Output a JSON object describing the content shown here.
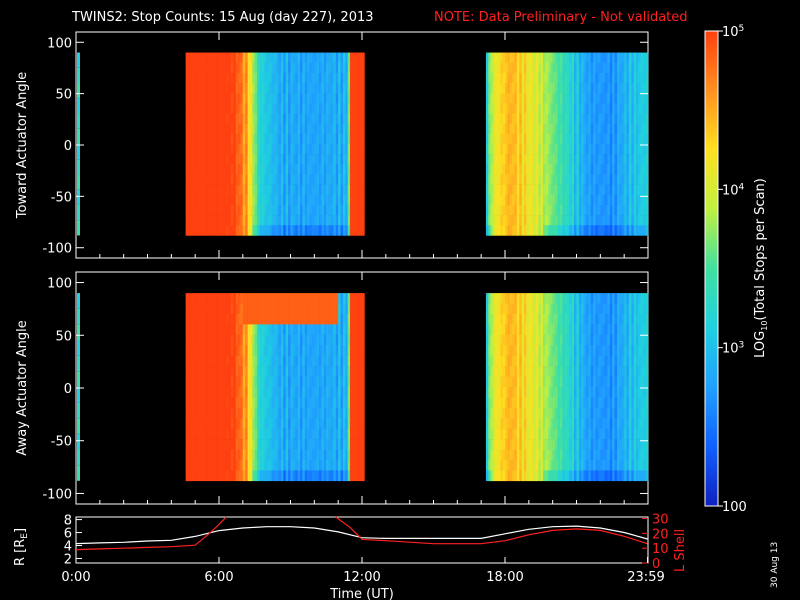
{
  "header": {
    "title": "TWINS2: Stop Counts: 15 Aug (day 227), 2013",
    "note": "NOTE: Data Preliminary - Not validated"
  },
  "stamp": "30 Aug 13",
  "colors": {
    "background": "#000000",
    "axis": "#ffffff",
    "note": "#ff2020",
    "lshell": "#ff2020",
    "radius": "#ffffff"
  },
  "chart_data": [
    {
      "type": "heatmap",
      "ylabel": "Toward Actuator Angle",
      "x_range_hours": [
        0,
        24
      ],
      "ylim": [
        -110,
        110
      ],
      "yticks": [
        "100",
        "50",
        "0",
        "-50",
        "-100"
      ],
      "ytick_values": [
        100,
        50,
        0,
        -50,
        -100
      ],
      "angle_range": [
        -88,
        90
      ],
      "data_intervals_hours": [
        [
          4.6,
          12.1
        ],
        [
          17.2,
          24
        ]
      ],
      "colorscale": [
        "#1020c0",
        "#1060ff",
        "#20a0ff",
        "#20d0e0",
        "#40e0a0",
        "#c0f040",
        "#ffe020",
        "#ff9020",
        "#ff4010"
      ],
      "level_profile": [
        [
          4.6,
          8.8
        ],
        [
          5.4,
          8.4
        ],
        [
          6.6,
          8.2
        ],
        [
          7.2,
          6.6
        ],
        [
          7.7,
          3.2
        ],
        [
          8.5,
          2.3
        ],
        [
          10,
          2.1
        ],
        [
          11.4,
          2.4
        ],
        [
          11.55,
          8.4
        ],
        [
          12.1,
          8.2
        ],
        [
          17.2,
          3.0
        ],
        [
          17.5,
          5.5
        ],
        [
          18.2,
          6.6
        ],
        [
          19.5,
          5.2
        ],
        [
          20.5,
          3.6
        ],
        [
          21.5,
          2.0
        ],
        [
          22.5,
          1.8
        ],
        [
          23.2,
          2.6
        ],
        [
          24,
          3.1
        ]
      ]
    },
    {
      "type": "heatmap",
      "ylabel": "Away Actuator Angle",
      "x_range_hours": [
        0,
        24
      ],
      "ylim": [
        -110,
        110
      ],
      "yticks": [
        "100",
        "50",
        "0",
        "-50",
        "-100"
      ],
      "ytick_values": [
        100,
        50,
        0,
        -50,
        -100
      ],
      "angle_range": [
        -88,
        90
      ],
      "data_intervals_hours": [
        [
          4.6,
          12.1
        ],
        [
          17.2,
          24
        ]
      ],
      "colorscale": [
        "#1020c0",
        "#1060ff",
        "#20a0ff",
        "#20d0e0",
        "#40e0a0",
        "#c0f040",
        "#ffe020",
        "#ff9020",
        "#ff4010"
      ],
      "level_profile": [
        [
          4.6,
          8.8
        ],
        [
          5.4,
          8.4
        ],
        [
          6.6,
          8.2
        ],
        [
          7.2,
          6.6
        ],
        [
          7.7,
          3.2
        ],
        [
          8.5,
          2.3
        ],
        [
          10,
          2.1
        ],
        [
          11.4,
          2.4
        ],
        [
          11.55,
          8.4
        ],
        [
          12.1,
          8.2
        ],
        [
          17.2,
          3.0
        ],
        [
          17.5,
          5.5
        ],
        [
          18.2,
          6.6
        ],
        [
          19.5,
          5.2
        ],
        [
          20.5,
          3.6
        ],
        [
          21.5,
          2.0
        ],
        [
          22.5,
          1.8
        ],
        [
          23.2,
          2.6
        ],
        [
          24,
          3.1
        ]
      ]
    },
    {
      "type": "line",
      "xlabel": "Time (UT)",
      "xticks": [
        "0:00",
        "6:00",
        "12:00",
        "18:00",
        "23:59"
      ],
      "xtick_values": [
        0,
        6,
        12,
        18,
        23.98
      ],
      "left_axis": {
        "label": "R [R",
        "label_sub": "E",
        "label_end": "]",
        "ticks": [
          "8",
          "6",
          "4",
          "2"
        ],
        "tick_values": [
          8,
          6,
          4,
          2
        ],
        "ylim": [
          1.3,
          8.4
        ]
      },
      "right_axis": {
        "label": "L Shell",
        "ticks": [
          "30",
          "20",
          "10",
          "0"
        ],
        "tick_values": [
          30,
          20,
          10,
          0
        ],
        "ylim": [
          0,
          31
        ]
      },
      "series": [
        {
          "axis": "left",
          "color": "#ffffff",
          "x": [
            0,
            1,
            2,
            3,
            4,
            5,
            6,
            7,
            8,
            9,
            10,
            11,
            12,
            13,
            14,
            15,
            16,
            17,
            18,
            19,
            20,
            21,
            22,
            23,
            23.98
          ],
          "y": [
            4.3,
            4.4,
            4.5,
            4.7,
            4.8,
            5.4,
            6.3,
            6.7,
            6.9,
            6.9,
            6.7,
            6.1,
            5.2,
            5.1,
            5.1,
            5.1,
            5.1,
            5.1,
            5.8,
            6.5,
            6.9,
            7.0,
            6.7,
            6.0,
            5.0
          ]
        },
        {
          "axis": "right",
          "color": "#ff2020",
          "x": [
            0,
            1,
            2,
            3,
            4,
            5,
            5.6,
            6,
            6.3,
            null,
            10.9,
            11.5,
            12,
            13,
            14,
            15,
            16,
            17,
            18,
            19,
            20,
            21,
            22,
            23,
            23.98
          ],
          "y": [
            9,
            9.5,
            10,
            10.5,
            11,
            12,
            20,
            26,
            31,
            null,
            31,
            24,
            16,
            15,
            14,
            13,
            13,
            13,
            15,
            19,
            22,
            23,
            22,
            18,
            13
          ]
        }
      ]
    },
    {
      "type": "colorbar",
      "label": "LOG",
      "label_sub": "10",
      "label_end": "(Total Stops per Scan)",
      "ticks": [
        {
          "base": "10",
          "exp": "5",
          "value": 5
        },
        {
          "base": "10",
          "exp": "4",
          "value": 4
        },
        {
          "base": "10",
          "exp": "3",
          "value": 3
        },
        {
          "base": "100",
          "exp": "",
          "value": 2
        }
      ],
      "range": [
        2,
        5
      ]
    }
  ]
}
